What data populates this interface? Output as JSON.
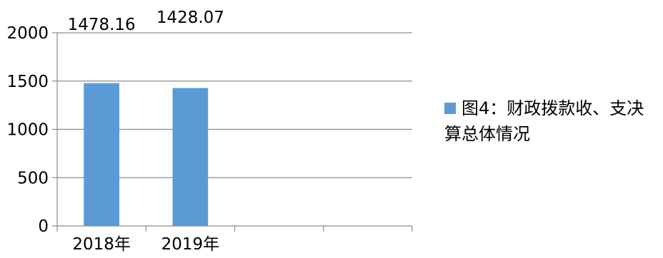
{
  "chart_data": {
    "type": "bar",
    "categories": [
      "2018年",
      "2019年",
      "",
      ""
    ],
    "series": [
      {
        "name": "图4：财政拨款收、支决算总体情况",
        "values": [
          1478.16,
          1428.07,
          null,
          null
        ],
        "data_labels": [
          "1478.16",
          "1428.07"
        ],
        "color": "#5B9BD5"
      }
    ],
    "y_ticks": [
      "0",
      "500",
      "1000",
      "1500",
      "2000"
    ],
    "ylim": [
      0,
      2000
    ],
    "grid": true,
    "legend_position": "right"
  }
}
